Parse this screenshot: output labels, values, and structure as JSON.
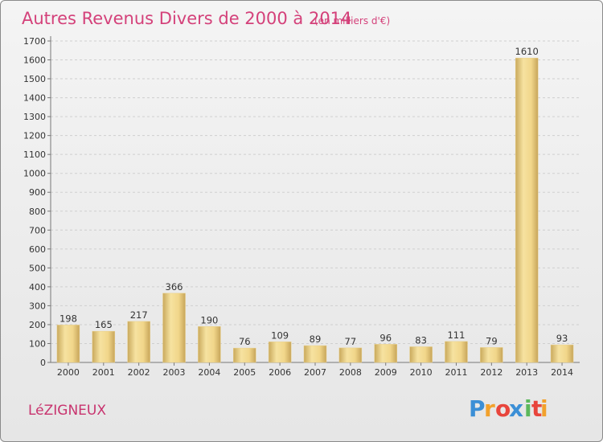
{
  "chart_data": {
    "type": "bar",
    "title": "Autres Revenus Divers de 2000 à 2014",
    "subtitle": "(en milliers d'€)",
    "categories": [
      "2000",
      "2001",
      "2002",
      "2003",
      "2004",
      "2005",
      "2006",
      "2007",
      "2008",
      "2009",
      "2010",
      "2011",
      "2012",
      "2013",
      "2014"
    ],
    "values": [
      198,
      165,
      217,
      366,
      190,
      76,
      109,
      89,
      77,
      96,
      83,
      111,
      79,
      1610,
      93
    ],
    "ylim": [
      0,
      1700
    ],
    "yticks": [
      0,
      100,
      200,
      300,
      400,
      500,
      600,
      700,
      800,
      900,
      1000,
      1100,
      1200,
      1300,
      1400,
      1500,
      1600,
      1700
    ],
    "grid": true,
    "legend": "none"
  },
  "location_label": "LéZIGNEUX",
  "brand": {
    "name": "Proxiti",
    "letters": [
      "P",
      "r",
      "o",
      "x",
      "i",
      "t",
      "i"
    ],
    "letter_colors": [
      "#3b8fd6",
      "#f2a12c",
      "#e8453c",
      "#3b8fd6",
      "#5cb85c",
      "#e8453c",
      "#f2a12c"
    ]
  },
  "colors": {
    "bar_light": "#f7e3a2",
    "bar_dark": "#d9b768",
    "title": "#d4417a"
  }
}
